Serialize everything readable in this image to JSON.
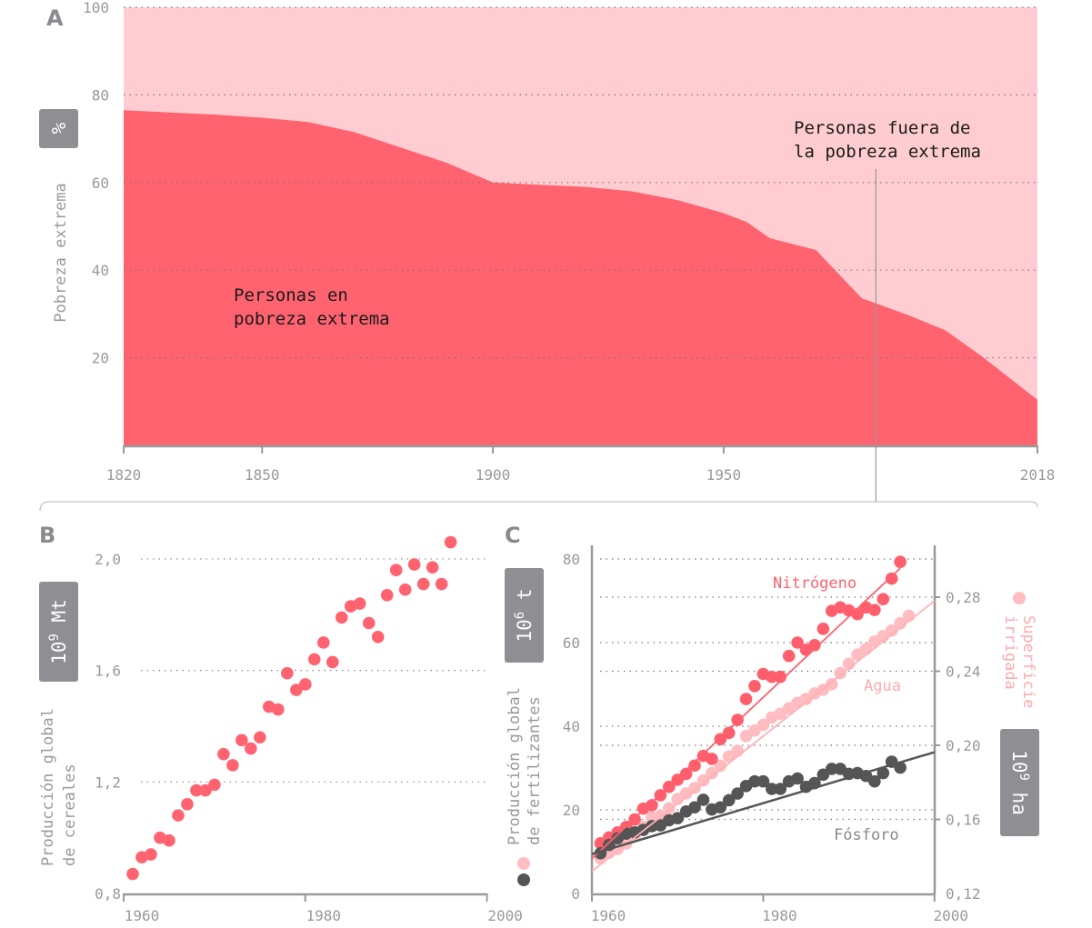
{
  "colors": {
    "poverty": "#ff6370",
    "not_poverty": "#ffcdd1",
    "nitrogen": "#ff5f6d",
    "water": "#ffbcc1",
    "phosphorus": "#555555",
    "axis": "#999999",
    "box": "#8e8e93"
  },
  "chart_data": [
    {
      "panel": "A",
      "type": "area",
      "ylabel": "Pobreza extrema",
      "unit": "%",
      "ylim": [
        0,
        100
      ],
      "xlim": [
        1820,
        2018
      ],
      "yticks": [
        "20",
        "40",
        "60",
        "80",
        "100"
      ],
      "xticks": [
        "1820",
        "1850",
        "1900",
        "1950",
        "2018"
      ],
      "grid": true,
      "x": [
        1820,
        1830,
        1840,
        1850,
        1860,
        1870,
        1880,
        1890,
        1900,
        1910,
        1920,
        1930,
        1940,
        1950,
        1955,
        1960,
        1970,
        1980,
        1981,
        1990,
        1998,
        2006,
        2018
      ],
      "values": [
        76.5,
        76,
        75.5,
        74.8,
        73.8,
        71.5,
        68,
        64.5,
        60,
        59.5,
        59,
        58,
        56,
        53,
        51,
        47.3,
        44.6,
        33.5,
        33.2,
        29.7,
        26.3,
        20.3,
        10.4
      ],
      "annotations": {
        "inside": "Personas en\npobreza extrema",
        "inside_lines": [
          "Personas en",
          "pobreza extrema"
        ],
        "outside_lines": [
          "Personas fuera de",
          "la pobreza extrema"
        ],
        "marker_year": 1983
      }
    },
    {
      "panel": "B",
      "type": "scatter",
      "ylabel_lines": [
        "Producción global",
        "de cereales"
      ],
      "unit_base": "10",
      "unit_exp": "9",
      "unit_suffix": " Mt",
      "ylim": [
        0.8,
        2.0
      ],
      "xlim": [
        1960,
        2000
      ],
      "yticks": [
        "0,8",
        "1,2",
        "1,6",
        "2,0"
      ],
      "xticks": [
        "1960",
        "1980",
        "2000"
      ],
      "grid": true,
      "x": [
        1961,
        1962,
        1963,
        1964,
        1965,
        1966,
        1967,
        1968,
        1969,
        1970,
        1971,
        1972,
        1973,
        1974,
        1975,
        1976,
        1977,
        1978,
        1979,
        1980,
        1981,
        1982,
        1983,
        1984,
        1985,
        1986,
        1987,
        1988,
        1989,
        1990,
        1991,
        1992,
        1993,
        1994,
        1995,
        1996
      ],
      "values": [
        0.87,
        0.93,
        0.94,
        1.0,
        0.99,
        1.08,
        1.12,
        1.17,
        1.17,
        1.19,
        1.3,
        1.26,
        1.35,
        1.32,
        1.36,
        1.47,
        1.46,
        1.59,
        1.53,
        1.55,
        1.64,
        1.7,
        1.63,
        1.79,
        1.83,
        1.84,
        1.77,
        1.72,
        1.87,
        1.96,
        1.89,
        1.98,
        1.91,
        1.97,
        1.91,
        2.06
      ]
    },
    {
      "panel": "C",
      "type": "scatter",
      "ylabel_lines": [
        "Producción global",
        "de fertilizantes"
      ],
      "left_unit_base": "10",
      "left_unit_exp": "6",
      "left_unit_suffix": " t",
      "right_label_lines": [
        "Superficie",
        "irrigada"
      ],
      "right_unit_base": "10",
      "right_unit_exp": "9",
      "right_unit_suffix": " ha",
      "ylim_left": [
        0,
        80
      ],
      "ylim_right": [
        0.12,
        0.28
      ],
      "xlim": [
        1960,
        2000
      ],
      "yticks_left": [
        "0",
        "20",
        "40",
        "60",
        "80"
      ],
      "yticks_right": [
        "0,12",
        "0,16",
        "0,20",
        "0,24",
        "0,28"
      ],
      "xticks": [
        "1960",
        "1980",
        "2000"
      ],
      "grid": true,
      "series": [
        {
          "name": "Nitrógeno",
          "axis": "left",
          "x_start": 1961,
          "values": [
            12.0,
            13.4,
            14.6,
            15.9,
            17.7,
            20.3,
            21.1,
            23.5,
            25.5,
            27.2,
            28.6,
            30.6,
            32.9,
            32.2,
            36.9,
            38.4,
            41.5,
            46.5,
            49.6,
            52.5,
            51.8,
            51.8,
            56.8,
            60.0,
            58.3,
            59.4,
            63.3,
            67.6,
            68.4,
            67.7,
            66.8,
            68.4,
            67.8,
            70.4,
            75.3,
            79.3
          ],
          "trend": [
            [
              1960,
              8.3
            ],
            [
              1996,
              77.8
            ]
          ]
        },
        {
          "name": "Agua",
          "axis": "right",
          "x_start": 1961,
          "values": [
            0.139,
            0.142,
            0.144,
            0.147,
            0.151,
            0.156,
            0.161,
            0.162,
            0.166,
            0.171,
            0.174,
            0.177,
            0.181,
            0.185,
            0.189,
            0.194,
            0.197,
            0.205,
            0.208,
            0.211,
            0.215,
            0.217,
            0.22,
            0.223,
            0.225,
            0.228,
            0.23,
            0.233,
            0.239,
            0.244,
            0.249,
            0.252,
            0.256,
            0.259,
            0.262,
            0.266,
            0.27
          ],
          "trend": [
            [
              1960,
              0.132
            ],
            [
              2000,
              0.278
            ]
          ]
        },
        {
          "name": "Fósforo",
          "axis": "left",
          "x_start": 1961,
          "values": [
            9.6,
            11.6,
            13.2,
            14.3,
            14.6,
            15.2,
            16.1,
            16.3,
            17.5,
            18.0,
            19.6,
            20.6,
            22.4,
            20.1,
            20.6,
            22.3,
            23.9,
            25.7,
            26.8,
            26.8,
            25.0,
            25.0,
            26.8,
            27.5,
            25.5,
            26.4,
            28.4,
            29.8,
            29.8,
            28.6,
            28.8,
            28.1,
            26.8,
            28.8,
            31.5,
            30.1
          ],
          "trend": [
            [
              1960,
              9.4
            ],
            [
              2000,
              33.8
            ]
          ]
        }
      ]
    }
  ]
}
